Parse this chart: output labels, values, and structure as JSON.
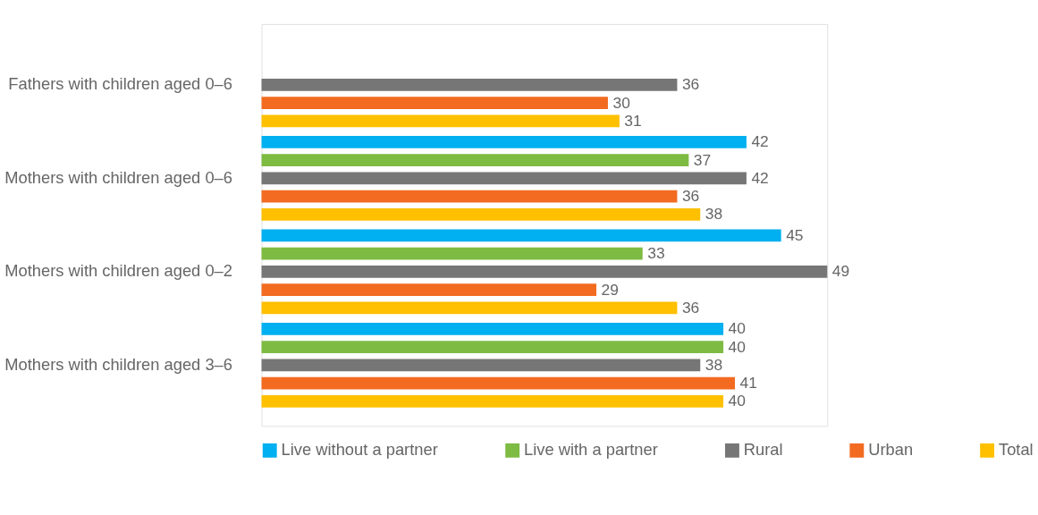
{
  "chart_data": {
    "type": "bar",
    "orientation": "horizontal",
    "categories": [
      "Fathers with children aged 0–6",
      "Mothers with children aged 0–6",
      "Mothers with children aged 0–2",
      "Mothers with children aged 3–6"
    ],
    "series": [
      {
        "name": "Live without a partner",
        "color": "#00b0f0",
        "values": [
          null,
          42,
          45,
          40
        ]
      },
      {
        "name": "Live with a partner",
        "color": "#7dbb42",
        "values": [
          null,
          37,
          33,
          40
        ]
      },
      {
        "name": "Rural",
        "color": "#767676",
        "values": [
          36,
          42,
          49,
          38
        ]
      },
      {
        "name": "Urban",
        "color": "#f26b21",
        "values": [
          30,
          36,
          29,
          41
        ]
      },
      {
        "name": "Total",
        "color": "#ffc000",
        "values": [
          31,
          38,
          36,
          40
        ]
      }
    ],
    "data_labels": true,
    "legend": "bottom"
  }
}
